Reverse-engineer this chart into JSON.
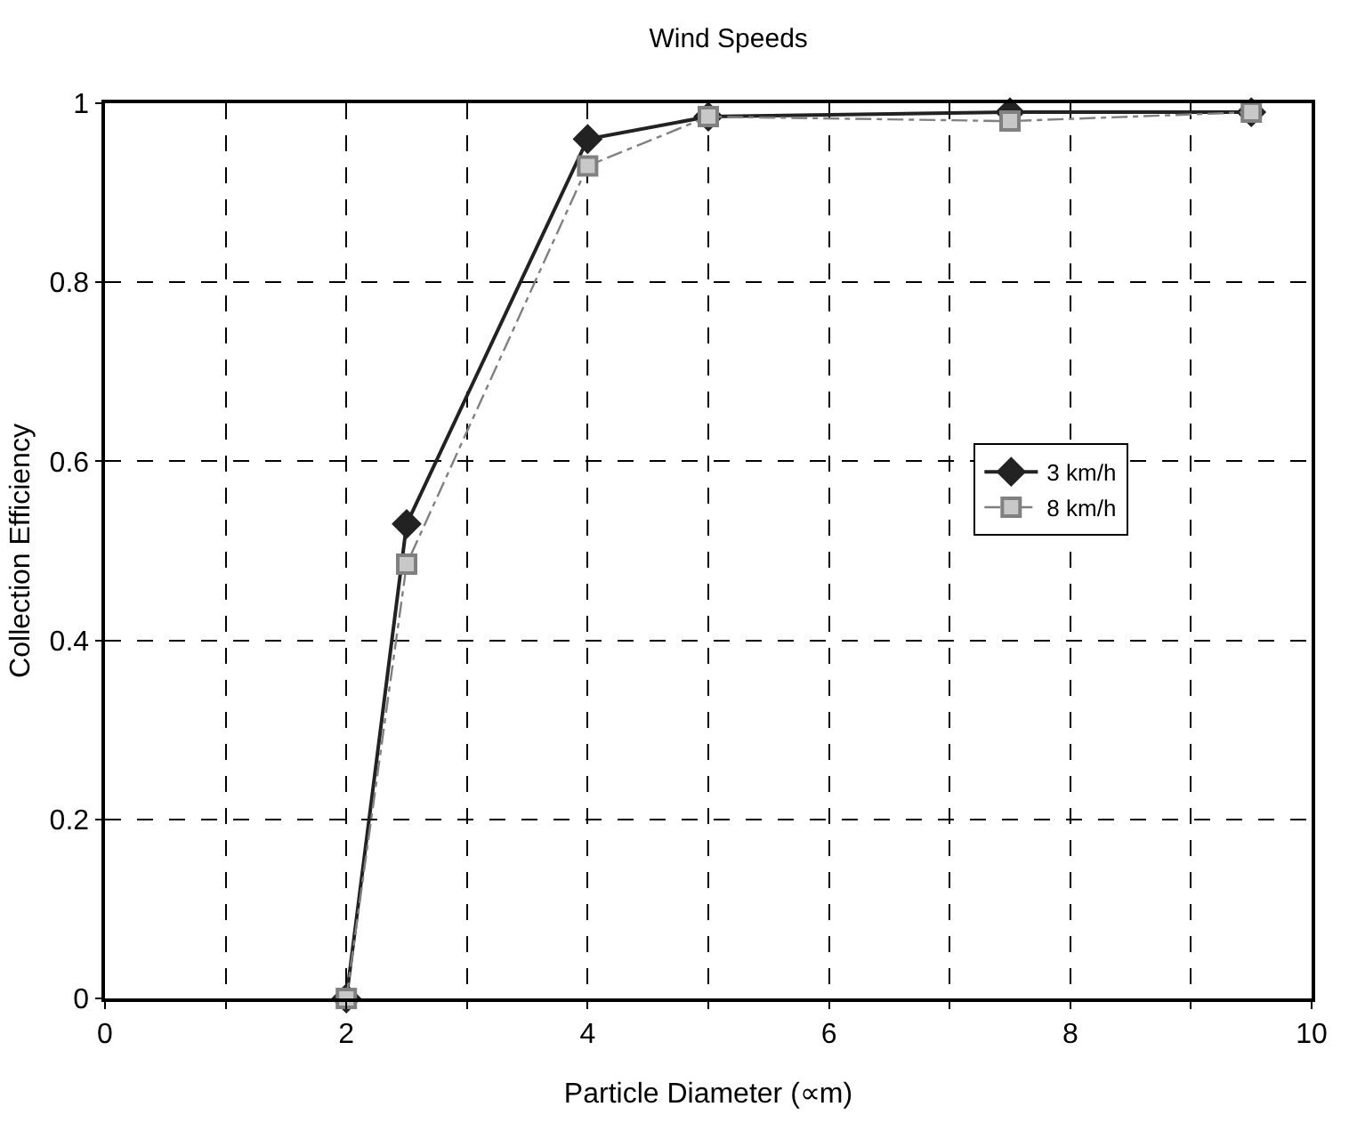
{
  "chart_data": {
    "type": "line",
    "title": "Wind Speeds",
    "xlabel": "Particle Diameter (∝m)",
    "ylabel": "Collection Efficiency",
    "xlim": [
      0,
      10
    ],
    "xticks": [
      0,
      {
        "value": 1,
        "label": null
      },
      2,
      {
        "value": 3,
        "label": null
      },
      4,
      {
        "value": 5,
        "label": null
      },
      6,
      {
        "value": 7,
        "label": null
      },
      8,
      {
        "value": 9,
        "label": null
      },
      10
    ],
    "ylim": [
      0,
      1
    ],
    "yticks": [
      0,
      0.2,
      0.4,
      0.6,
      0.8,
      1
    ],
    "grid": true,
    "legend": "right",
    "series": [
      {
        "name": "3 km/h",
        "color": "#222222",
        "marker": "diamond",
        "line_style": "solid",
        "x": [
          2,
          2.5,
          4,
          5,
          7.5,
          9.5
        ],
        "values": [
          0,
          0.53,
          0.96,
          0.985,
          0.99,
          0.99
        ]
      },
      {
        "name": "8 km/h",
        "color": "#808080",
        "marker": "square",
        "line_style": "dashdot",
        "x": [
          2,
          2.5,
          4,
          5,
          7.5,
          9.5
        ],
        "values": [
          0,
          0.485,
          0.93,
          0.985,
          0.98,
          0.99
        ]
      }
    ]
  }
}
